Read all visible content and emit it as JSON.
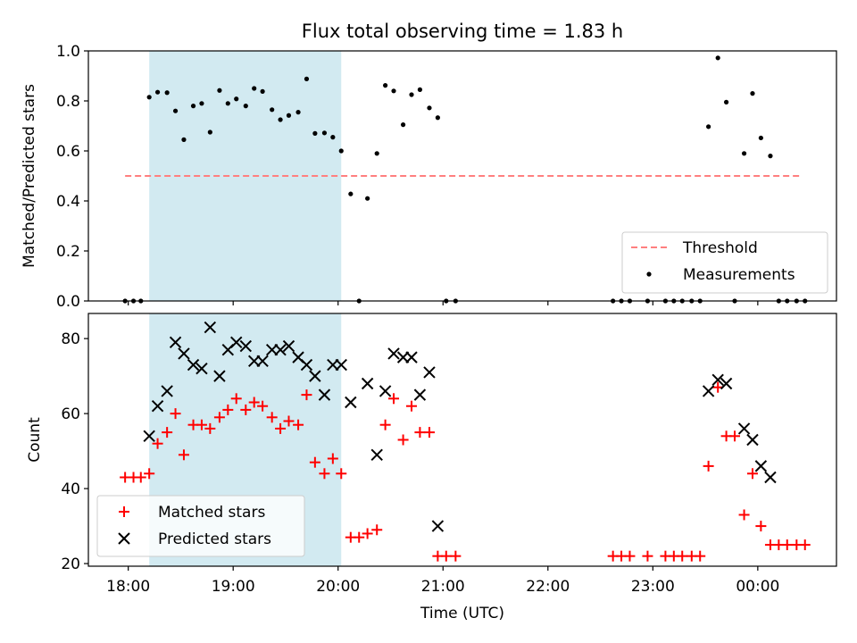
{
  "title": "Flux total observing time = 1.83 h",
  "colors": {
    "shade": "#add8e6",
    "threshold": "#ff7f7f",
    "matched": "#ff0000",
    "predicted": "#000000",
    "measurement": "#000000"
  },
  "shaded_interval": {
    "start_h": 18.2,
    "end_h": 20.03
  },
  "x_axis": {
    "label": "Time (UTC)",
    "range_h": [
      17.62,
      24.75
    ],
    "ticks": [
      {
        "h": 18,
        "label": "18:00"
      },
      {
        "h": 19,
        "label": "19:00"
      },
      {
        "h": 20,
        "label": "20:00"
      },
      {
        "h": 21,
        "label": "21:00"
      },
      {
        "h": 22,
        "label": "22:00"
      },
      {
        "h": 23,
        "label": "23:00"
      },
      {
        "h": 24,
        "label": "00:00"
      }
    ]
  },
  "chart_data": [
    {
      "type": "scatter",
      "title": "Flux total observing time = 1.83 h",
      "xlabel": "",
      "ylabel": "Matched/Predicted stars",
      "ylim": [
        0,
        1.0
      ],
      "yticks": [
        {
          "v": 0.0,
          "label": "0.0"
        },
        {
          "v": 0.2,
          "label": "0.2"
        },
        {
          "v": 0.4,
          "label": "0.4"
        },
        {
          "v": 0.6,
          "label": "0.6"
        },
        {
          "v": 0.8,
          "label": "0.8"
        },
        {
          "v": 1.0,
          "label": "1.0"
        }
      ],
      "threshold": {
        "name": "Threshold",
        "value": 0.5,
        "x_range_h": [
          17.97,
          24.42
        ]
      },
      "legend": {
        "placement": "lower-right",
        "entries": [
          "Threshold",
          "Measurements"
        ]
      },
      "series": [
        {
          "name": "Measurements",
          "points": [
            [
              17.97,
              0.0
            ],
            [
              18.05,
              0.0
            ],
            [
              18.12,
              0.0
            ],
            [
              18.2,
              0.815
            ],
            [
              18.28,
              0.835
            ],
            [
              18.37,
              0.833
            ],
            [
              18.45,
              0.76
            ],
            [
              18.53,
              0.645
            ],
            [
              18.62,
              0.78
            ],
            [
              18.7,
              0.79
            ],
            [
              18.78,
              0.675
            ],
            [
              18.87,
              0.842
            ],
            [
              18.95,
              0.79
            ],
            [
              19.03,
              0.808
            ],
            [
              19.12,
              0.78
            ],
            [
              19.2,
              0.85
            ],
            [
              19.28,
              0.838
            ],
            [
              19.37,
              0.765
            ],
            [
              19.45,
              0.725
            ],
            [
              19.53,
              0.742
            ],
            [
              19.62,
              0.755
            ],
            [
              19.7,
              0.888
            ],
            [
              19.78,
              0.67
            ],
            [
              19.87,
              0.672
            ],
            [
              19.95,
              0.655
            ],
            [
              20.03,
              0.6
            ],
            [
              20.12,
              0.428
            ],
            [
              20.2,
              0.0
            ],
            [
              20.28,
              0.41
            ],
            [
              20.37,
              0.59
            ],
            [
              20.45,
              0.862
            ],
            [
              20.53,
              0.84
            ],
            [
              20.62,
              0.705
            ],
            [
              20.7,
              0.825
            ],
            [
              20.78,
              0.845
            ],
            [
              20.87,
              0.772
            ],
            [
              20.95,
              0.733
            ],
            [
              21.03,
              0.0
            ],
            [
              21.12,
              0.0
            ],
            [
              22.62,
              0.0
            ],
            [
              22.7,
              0.0
            ],
            [
              22.78,
              0.0
            ],
            [
              22.95,
              0.0
            ],
            [
              23.12,
              0.0
            ],
            [
              23.2,
              0.0
            ],
            [
              23.28,
              0.0
            ],
            [
              23.37,
              0.0
            ],
            [
              23.45,
              0.0
            ],
            [
              23.53,
              0.697
            ],
            [
              23.62,
              0.972
            ],
            [
              23.7,
              0.795
            ],
            [
              23.78,
              0.0
            ],
            [
              23.87,
              0.59
            ],
            [
              23.95,
              0.83
            ],
            [
              24.03,
              0.652
            ],
            [
              24.12,
              0.58
            ],
            [
              24.2,
              0.0
            ],
            [
              24.28,
              0.0
            ],
            [
              24.37,
              0.0
            ],
            [
              24.45,
              0.0
            ]
          ]
        }
      ]
    },
    {
      "type": "scatter",
      "xlabel": "Time (UTC)",
      "ylabel": "Count",
      "ylim": [
        19.3,
        86.7
      ],
      "yticks": [
        {
          "v": 20,
          "label": "20"
        },
        {
          "v": 40,
          "label": "40"
        },
        {
          "v": 60,
          "label": "60"
        },
        {
          "v": 80,
          "label": "80"
        }
      ],
      "legend": {
        "placement": "lower-left",
        "entries": [
          "Matched stars",
          "Predicted stars"
        ]
      },
      "series": [
        {
          "name": "Matched stars",
          "marker": "plus",
          "points": [
            [
              17.97,
              43
            ],
            [
              18.05,
              43
            ],
            [
              18.12,
              43
            ],
            [
              18.2,
              44
            ],
            [
              18.28,
              52
            ],
            [
              18.37,
              55
            ],
            [
              18.45,
              60
            ],
            [
              18.53,
              49
            ],
            [
              18.62,
              57
            ],
            [
              18.7,
              57
            ],
            [
              18.78,
              56
            ],
            [
              18.87,
              59
            ],
            [
              18.95,
              61
            ],
            [
              19.03,
              64
            ],
            [
              19.12,
              61
            ],
            [
              19.2,
              63
            ],
            [
              19.28,
              62
            ],
            [
              19.37,
              59
            ],
            [
              19.45,
              56
            ],
            [
              19.53,
              58
            ],
            [
              19.62,
              57
            ],
            [
              19.7,
              65
            ],
            [
              19.78,
              47
            ],
            [
              19.87,
              44
            ],
            [
              19.95,
              48
            ],
            [
              20.03,
              44
            ],
            [
              20.12,
              27
            ],
            [
              20.2,
              27
            ],
            [
              20.28,
              28
            ],
            [
              20.37,
              29
            ],
            [
              20.45,
              57
            ],
            [
              20.53,
              64
            ],
            [
              20.62,
              53
            ],
            [
              20.7,
              62
            ],
            [
              20.78,
              55
            ],
            [
              20.87,
              55
            ],
            [
              20.95,
              22
            ],
            [
              21.03,
              22
            ],
            [
              21.12,
              22
            ],
            [
              22.62,
              22
            ],
            [
              22.7,
              22
            ],
            [
              22.78,
              22
            ],
            [
              22.95,
              22
            ],
            [
              23.12,
              22
            ],
            [
              23.2,
              22
            ],
            [
              23.28,
              22
            ],
            [
              23.37,
              22
            ],
            [
              23.45,
              22
            ],
            [
              23.53,
              46
            ],
            [
              23.62,
              67
            ],
            [
              23.7,
              54
            ],
            [
              23.78,
              54
            ],
            [
              23.87,
              33
            ],
            [
              23.95,
              44
            ],
            [
              24.03,
              30
            ],
            [
              24.12,
              25
            ],
            [
              24.2,
              25
            ],
            [
              24.28,
              25
            ],
            [
              24.37,
              25
            ],
            [
              24.45,
              25
            ]
          ]
        },
        {
          "name": "Predicted stars",
          "marker": "x",
          "points": [
            [
              18.2,
              54
            ],
            [
              18.28,
              62
            ],
            [
              18.37,
              66
            ],
            [
              18.45,
              79
            ],
            [
              18.53,
              76
            ],
            [
              18.62,
              73
            ],
            [
              18.7,
              72
            ],
            [
              18.78,
              83
            ],
            [
              18.87,
              70
            ],
            [
              18.95,
              77
            ],
            [
              19.03,
              79
            ],
            [
              19.12,
              78
            ],
            [
              19.2,
              74
            ],
            [
              19.28,
              74
            ],
            [
              19.37,
              77
            ],
            [
              19.45,
              77
            ],
            [
              19.53,
              78
            ],
            [
              19.62,
              75
            ],
            [
              19.7,
              73
            ],
            [
              19.78,
              70
            ],
            [
              19.87,
              65
            ],
            [
              19.95,
              73
            ],
            [
              20.03,
              73
            ],
            [
              20.12,
              63
            ],
            [
              20.28,
              68
            ],
            [
              20.37,
              49
            ],
            [
              20.45,
              66
            ],
            [
              20.53,
              76
            ],
            [
              20.62,
              75
            ],
            [
              20.7,
              75
            ],
            [
              20.78,
              65
            ],
            [
              20.87,
              71
            ],
            [
              20.95,
              30
            ],
            [
              23.53,
              66
            ],
            [
              23.62,
              69
            ],
            [
              23.7,
              68
            ],
            [
              23.87,
              56
            ],
            [
              23.95,
              53
            ],
            [
              24.03,
              46
            ],
            [
              24.12,
              43
            ]
          ]
        }
      ]
    }
  ]
}
